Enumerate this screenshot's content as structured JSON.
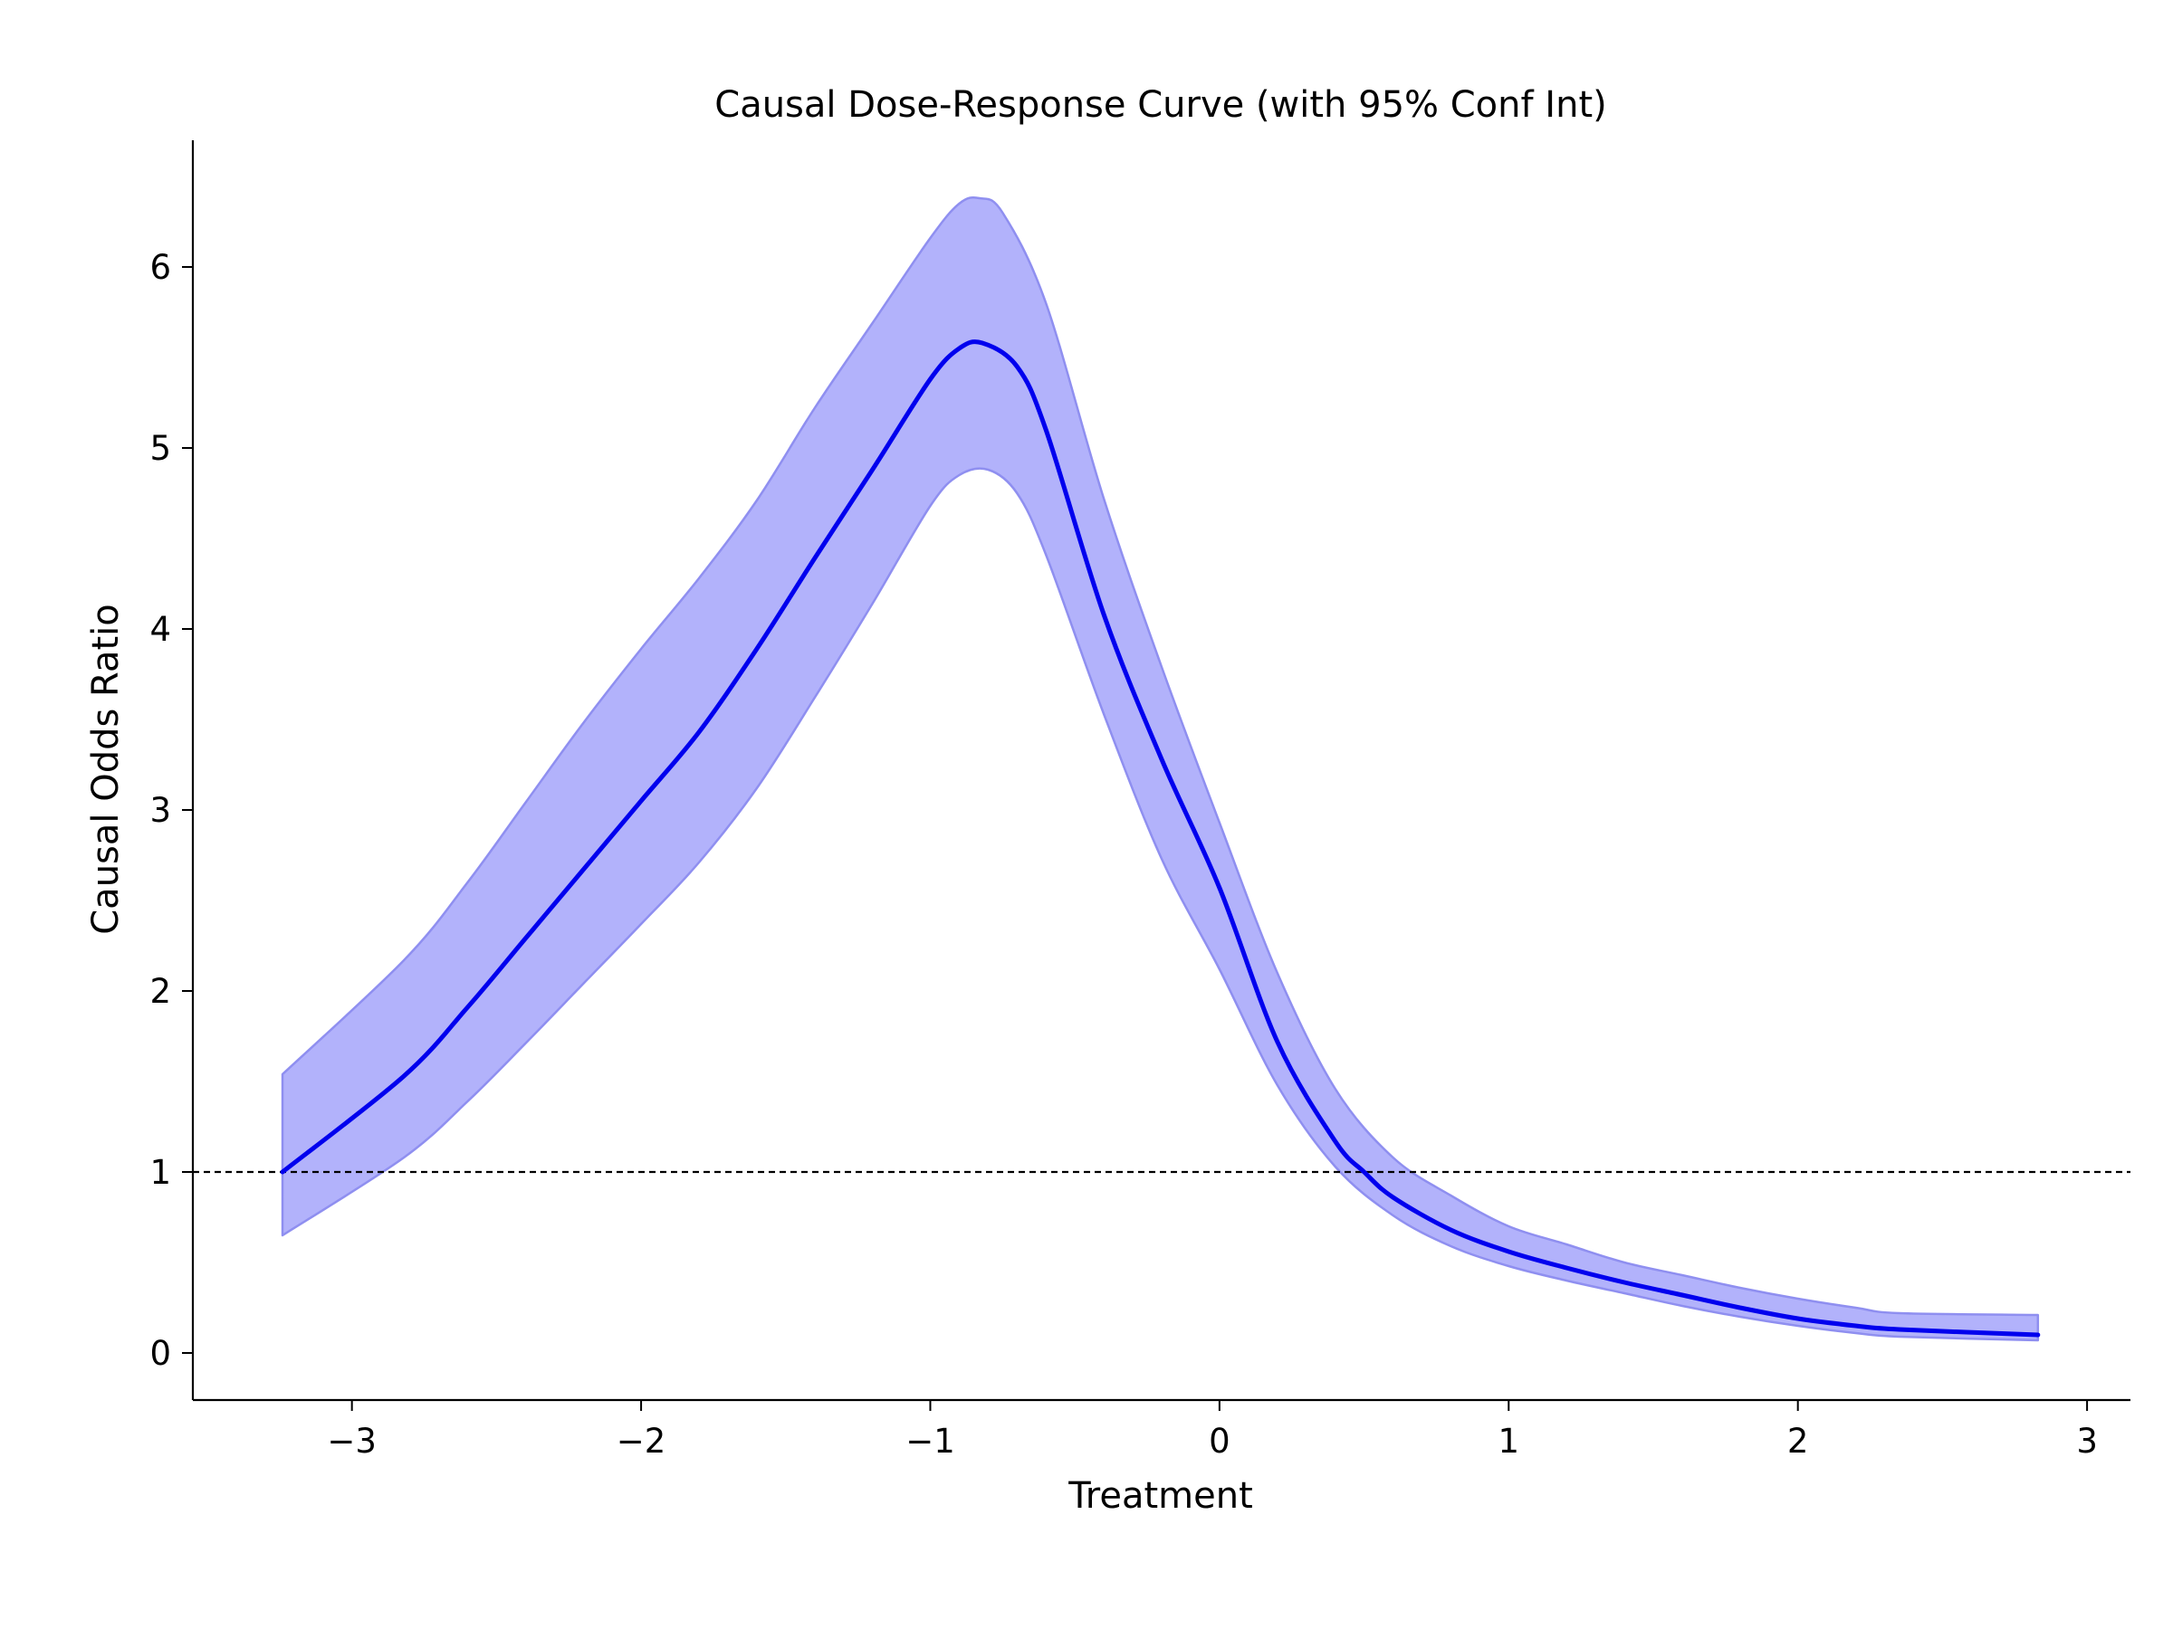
{
  "chart_data": {
    "type": "line",
    "title": "Causal Dose-Response Curve (with 95% Conf Int)",
    "xlabel": "Treatment",
    "ylabel": "Causal Odds Ratio",
    "xlim": [
      -3.55,
      3.15
    ],
    "ylim": [
      -0.26,
      6.7
    ],
    "x_ticks": [
      -3,
      -2,
      -1,
      0,
      1,
      2,
      3
    ],
    "x_tick_labels": [
      "−3",
      "−2",
      "−1",
      "0",
      "1",
      "2",
      "3"
    ],
    "y_ticks": [
      0,
      1,
      2,
      3,
      4,
      5,
      6
    ],
    "y_tick_labels": [
      "0",
      "1",
      "2",
      "3",
      "4",
      "5",
      "6"
    ],
    "grid": false,
    "reference_line": {
      "y": 1,
      "style": "dashed",
      "color": "#000000"
    },
    "colors": {
      "line": "#0000ee",
      "band_fill": "#b2b2fb",
      "band_edge": "#8f8ff0"
    },
    "series": [
      {
        "role": "estimate",
        "x": [
          -3.24,
          -2.82,
          -2.6,
          -2.4,
          -2.2,
          -2.0,
          -1.8,
          -1.6,
          -1.4,
          -1.2,
          -1.0,
          -0.9,
          -0.82,
          -0.7,
          -0.6,
          -0.4,
          -0.2,
          0.0,
          0.2,
          0.4,
          0.5,
          0.6,
          0.8,
          1.0,
          1.2,
          1.4,
          1.6,
          1.8,
          2.0,
          2.2,
          2.35,
          2.83
        ],
        "y": [
          1.0,
          1.53,
          1.91,
          2.29,
          2.67,
          3.05,
          3.43,
          3.89,
          4.39,
          4.88,
          5.38,
          5.55,
          5.58,
          5.45,
          5.1,
          4.08,
          3.28,
          2.57,
          1.72,
          1.17,
          1.0,
          0.86,
          0.68,
          0.56,
          0.47,
          0.39,
          0.32,
          0.25,
          0.19,
          0.15,
          0.13,
          0.1
        ]
      },
      {
        "role": "lower_95",
        "x": [
          -3.24,
          -2.82,
          -2.6,
          -2.4,
          -2.2,
          -2.0,
          -1.8,
          -1.6,
          -1.4,
          -1.2,
          -1.0,
          -0.9,
          -0.8,
          -0.7,
          -0.6,
          -0.4,
          -0.2,
          0.0,
          0.2,
          0.4,
          0.6,
          0.8,
          1.0,
          1.2,
          1.4,
          1.6,
          1.8,
          2.0,
          2.2,
          2.35,
          2.83
        ],
        "y": [
          0.65,
          1.08,
          1.39,
          1.71,
          2.04,
          2.37,
          2.71,
          3.12,
          3.62,
          4.14,
          4.68,
          4.85,
          4.88,
          4.75,
          4.41,
          3.53,
          2.73,
          2.12,
          1.48,
          1.03,
          0.76,
          0.59,
          0.48,
          0.4,
          0.33,
          0.26,
          0.2,
          0.15,
          0.11,
          0.09,
          0.07
        ]
      },
      {
        "role": "upper_95",
        "x": [
          -3.24,
          -2.82,
          -2.6,
          -2.4,
          -2.2,
          -2.0,
          -1.8,
          -1.6,
          -1.4,
          -1.2,
          -1.0,
          -0.9,
          -0.83,
          -0.75,
          -0.6,
          -0.4,
          -0.2,
          0.0,
          0.2,
          0.4,
          0.6,
          0.8,
          1.0,
          1.2,
          1.4,
          1.6,
          1.8,
          2.0,
          2.2,
          2.35,
          2.83
        ],
        "y": [
          1.54,
          2.17,
          2.6,
          3.04,
          3.48,
          3.89,
          4.28,
          4.71,
          5.22,
          5.69,
          6.16,
          6.35,
          6.38,
          6.3,
          5.8,
          4.72,
          3.79,
          2.93,
          2.1,
          1.46,
          1.08,
          0.87,
          0.7,
          0.6,
          0.5,
          0.43,
          0.36,
          0.3,
          0.25,
          0.22,
          0.21
        ]
      }
    ]
  }
}
